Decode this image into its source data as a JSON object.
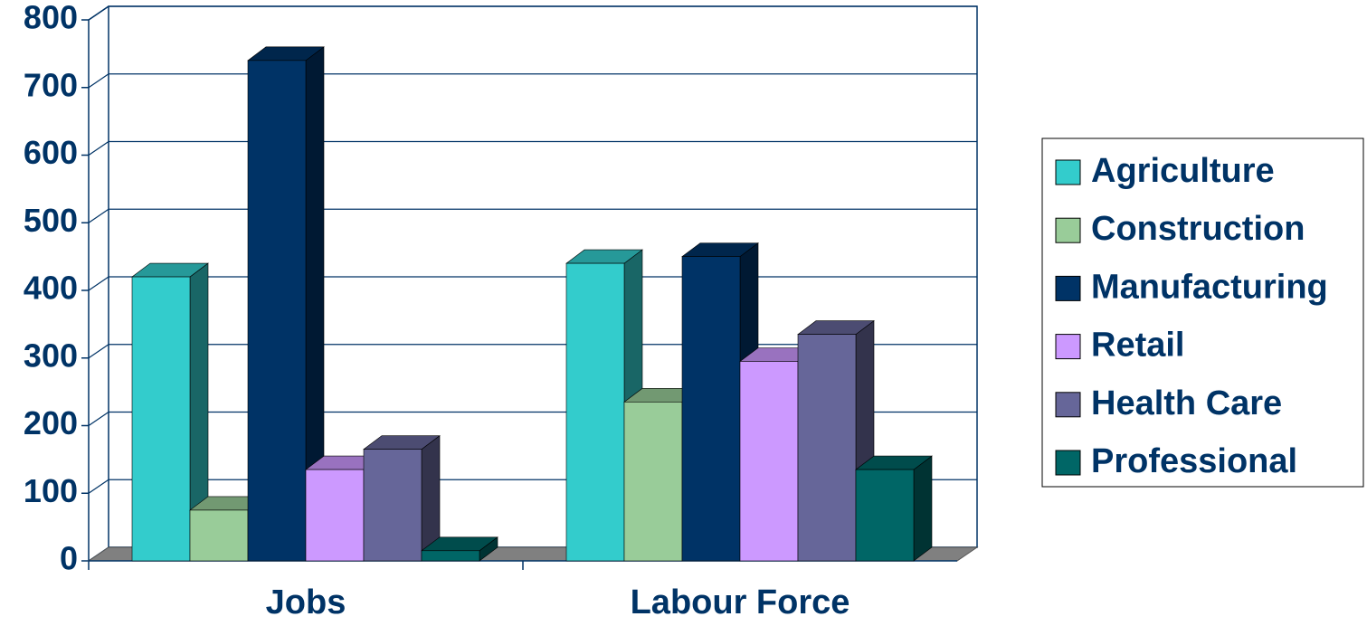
{
  "chart_data": {
    "type": "bar3d",
    "categories": [
      "Jobs",
      "Labour Force"
    ],
    "series": [
      {
        "name": "Agriculture",
        "color": "#33cccc",
        "values": [
          420,
          440
        ]
      },
      {
        "name": "Construction",
        "color": "#99cc99",
        "values": [
          75,
          235
        ]
      },
      {
        "name": "Manufacturing",
        "color": "#003366",
        "values": [
          740,
          450
        ]
      },
      {
        "name": "Retail",
        "color": "#cc99ff",
        "values": [
          135,
          295
        ]
      },
      {
        "name": "Health Care",
        "color": "#666699",
        "values": [
          165,
          335
        ]
      },
      {
        "name": "Professional",
        "color": "#006666",
        "values": [
          15,
          135
        ]
      }
    ],
    "ylim": [
      0,
      800
    ],
    "yticks": [
      0,
      100,
      200,
      300,
      400,
      500,
      600,
      700,
      800
    ],
    "grid": true,
    "legend": "right"
  }
}
